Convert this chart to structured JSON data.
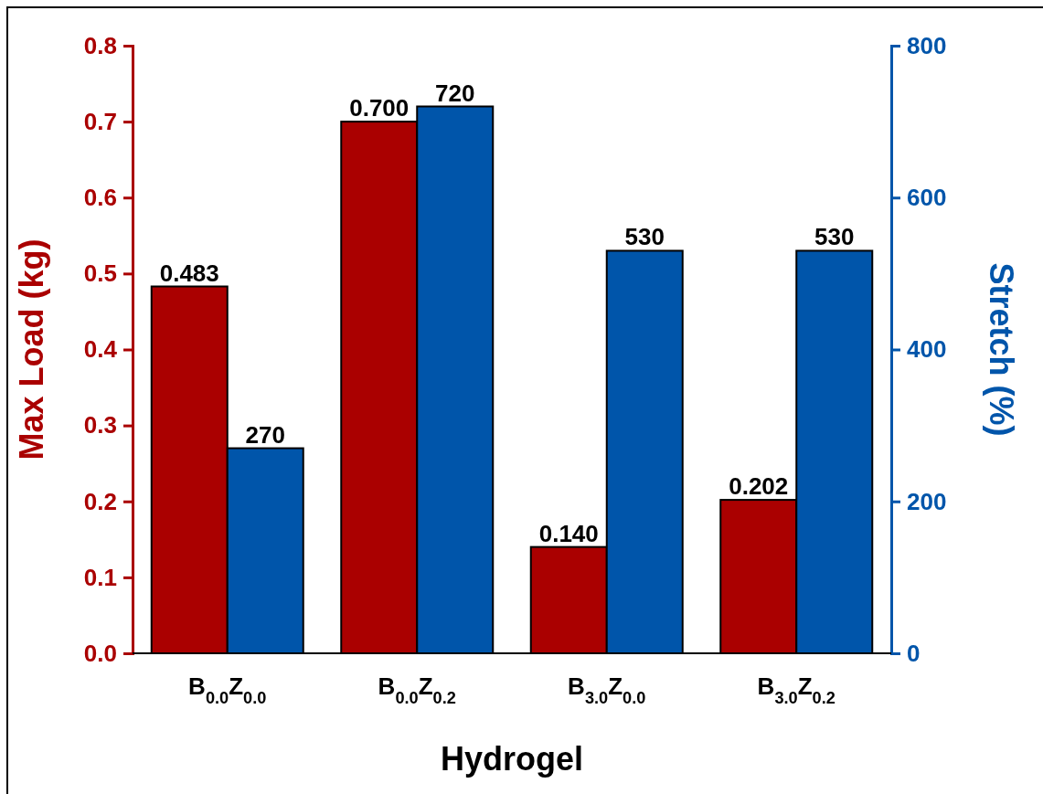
{
  "chart_data": {
    "type": "bar",
    "xlabel": "Hydrogel",
    "ylabel": "Max Load (kg)",
    "y2label": "Stretch (%)",
    "categories": [
      "B$_{0.0}$Z$_{0.0}$",
      "B$_{0.0}$Z$_{0.2}$",
      "B$_{3.0}$Z$_{0.0}$",
      "B$_{3.0}$Z$_{0.2}$"
    ],
    "series": [
      {
        "color": "#aa0000",
        "values": [
          0.483,
          0.7,
          0.14,
          0.202
        ],
        "value_labels": [
          "0.483",
          "0.700",
          "0.140",
          "0.202"
        ]
      },
      {
        "color": "#0055aa",
        "axis": "y2",
        "values": [
          270,
          720,
          530,
          530
        ],
        "value_labels": [
          "270",
          "720",
          "530",
          "530"
        ]
      }
    ],
    "ylim": [
      0,
      0.8
    ],
    "yticks": [
      {
        "value": 0,
        "label": "0.0"
      },
      {
        "value": 0.1,
        "label": "0.1"
      },
      {
        "value": 0.2,
        "label": "0.2"
      },
      {
        "value": 0.3,
        "label": "0.3"
      },
      {
        "value": 0.4,
        "label": "0.4"
      },
      {
        "value": 0.5,
        "label": "0.5"
      },
      {
        "value": 0.6,
        "label": "0.6"
      },
      {
        "value": 0.7,
        "label": "0.7"
      },
      {
        "value": 0.8,
        "label": "0.8"
      }
    ],
    "y2lim": [
      0,
      800
    ],
    "y2ticks": [
      0,
      200,
      400,
      600,
      800
    ],
    "grid": false
  }
}
